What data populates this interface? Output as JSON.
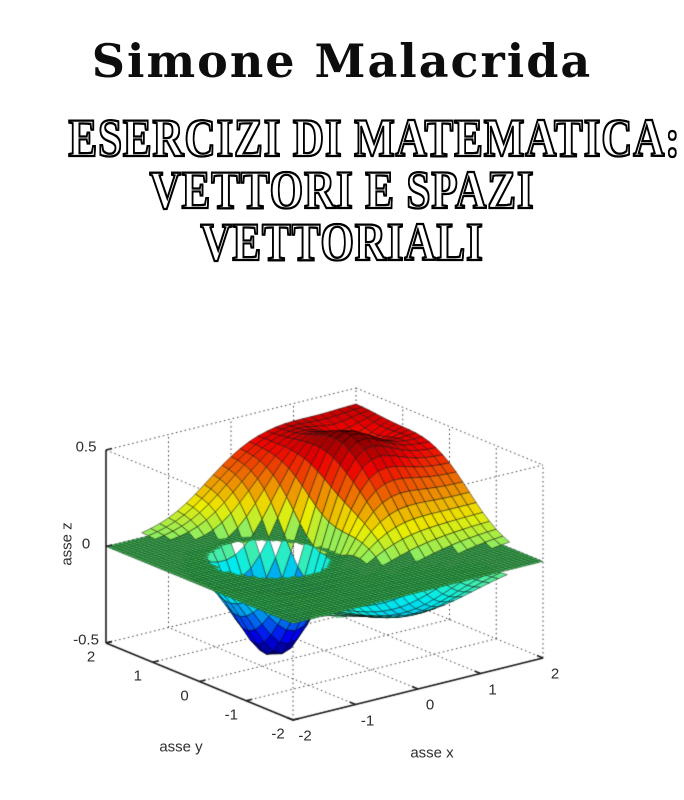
{
  "cover": {
    "author": "Simone Malacrida",
    "title_lines": [
      "ESERCIZI DI MATEMATICA:",
      "VETTORI E SPAZI",
      "VETTORIALI"
    ]
  },
  "chart_data": {
    "type": "surface3d",
    "description": "MATLAB-style 3D surf plot: a colored surface (jet colormap, flat shading, black mesh lines) with a clipped peak near (0.75,0.55,0.5), a broad red plateau toward +x/+y, a deep bowl to -0.5 near (-0.45,0.35) and a shallow front trough, intersecting a fine green reference mesh plane at z=0. Dotted box grid on floor and back walls.",
    "xlabel": "asse x",
    "ylabel": "asse y",
    "zlabel": "asse z",
    "x_range": [
      -2,
      2
    ],
    "y_range": [
      -2,
      2
    ],
    "z_range": [
      -0.5,
      0.5
    ],
    "x_ticks": [
      -2,
      -1,
      0,
      1,
      2
    ],
    "x_tick_labels": [
      "-2",
      "-1",
      "0",
      "1",
      "2"
    ],
    "y_ticks": [
      2,
      1,
      0,
      -1,
      -2
    ],
    "y_tick_labels": [
      "2",
      "1",
      "0",
      "-1",
      "-2"
    ],
    "z_ticks": [
      -0.5,
      0,
      0.5
    ],
    "z_tick_labels": [
      "-0.5",
      "0",
      "0.5"
    ],
    "colormap": "jet",
    "grid": "dotted",
    "surface_divisions": 28,
    "plane_divisions": 58,
    "surface_model": {
      "plateau": {
        "amp": 0.42,
        "kx": 2.6,
        "x0": -0.4,
        "ky": 2.6,
        "y0": -0.4
      },
      "gaussians": [
        {
          "name": "peak",
          "amp": 0.16,
          "x": 0.75,
          "y": 0.55,
          "sx": 0.45,
          "sy": 0.55
        },
        {
          "name": "bowl",
          "amp": -0.68,
          "x": -0.45,
          "y": 0.35,
          "sx": 0.55,
          "sy": 0.55
        },
        {
          "name": "crater",
          "amp": -0.1,
          "x": 1.4,
          "y": 1.2,
          "sx": 0.3,
          "sy": 0.35
        },
        {
          "name": "front-trough",
          "amp": -0.17,
          "x": 0.1,
          "y": -1.55,
          "sx": 0.8,
          "sy": 0.5
        }
      ]
    },
    "colors": {
      "plane_fill": "#3fae52",
      "plane_line": "#0c4418",
      "surface_line": "#000000",
      "axis": "#1a1a1a",
      "grid_dots": "#3c3c3c",
      "label_text": "#2e2e2e",
      "background": "#ffffff"
    }
  }
}
